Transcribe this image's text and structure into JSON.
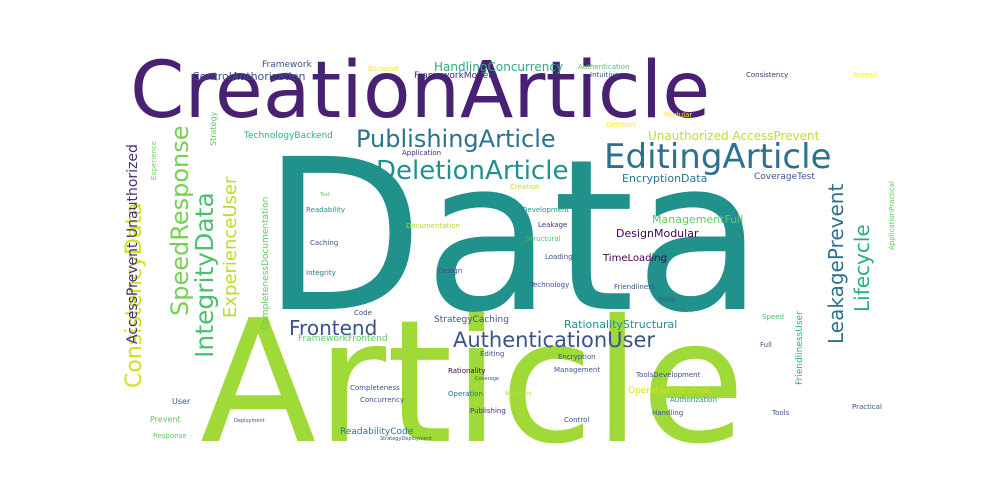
{
  "colors": {
    "background": "#ffffff",
    "palette": [
      "#440154",
      "#472d7b",
      "#3b528b",
      "#2c728e",
      "#21918c",
      "#28ae80",
      "#5ec962",
      "#addc30",
      "#fde725"
    ]
  },
  "words": [
    {
      "text": "Data",
      "color": "#21918c"
    },
    {
      "text": "Article",
      "color": "#a0da39"
    },
    {
      "text": "CreationArticle",
      "color": "#482173"
    },
    {
      "text": "EditingArticle",
      "color": "#2c728e"
    },
    {
      "text": "PublishingArticle",
      "color": "#2c728e"
    },
    {
      "text": "DeletionArticle",
      "color": "#21918c"
    },
    {
      "text": "AuthenticationUser",
      "color": "#3b528b"
    },
    {
      "text": "Frontend",
      "color": "#3b528b"
    },
    {
      "text": "SpeedResponse",
      "color": "#75d054"
    },
    {
      "text": "ConsistencyData",
      "color": "#d2e21b"
    },
    {
      "text": "IntegrityData",
      "color": "#4ac16d"
    },
    {
      "text": "ExperienceUser",
      "color": "#b8de29"
    },
    {
      "text": "AccessPrevent Unauthorized",
      "color": "#472d7b"
    },
    {
      "text": "LeakagePrevent",
      "color": "#2c728e"
    },
    {
      "text": "Lifecycle",
      "color": "#28ae80"
    },
    {
      "text": "HandlingConcurrency",
      "color": "#28ae80"
    },
    {
      "text": "ControlAuthorization",
      "color": "#3b528b"
    },
    {
      "text": "Framework",
      "color": "#3b528b"
    },
    {
      "text": "FrameworkModern",
      "color": "#472d7b"
    },
    {
      "text": "Unauthorized AccessPrevent",
      "color": "#bddf26"
    },
    {
      "text": "EncryptionData",
      "color": "#2c728e"
    },
    {
      "text": "CoverageTest",
      "color": "#3b528b"
    },
    {
      "text": "ManagementFull",
      "color": "#5ec962"
    },
    {
      "text": "DesignModular",
      "color": "#440154"
    },
    {
      "text": "TimeLoading",
      "color": "#440154"
    },
    {
      "text": "RationalityStructural",
      "color": "#21918c"
    },
    {
      "text": "StrategyCaching",
      "color": "#3b528b"
    },
    {
      "text": "FrameworkFrontend",
      "color": "#5ec962"
    },
    {
      "text": "TechnologyBackend",
      "color": "#28ae80"
    },
    {
      "text": "CompletenessDocumentation",
      "color": "#5ec962"
    },
    {
      "text": "ReadabilityCode",
      "color": "#2c728e"
    },
    {
      "text": "OperationIntuitive",
      "color": "#d2e21b"
    },
    {
      "text": "ToolsDevelopment",
      "color": "#3b528b"
    },
    {
      "text": "FriendlinessUser",
      "color": "#28ae80"
    },
    {
      "text": "ApplicationPractical",
      "color": "#5ec962"
    },
    {
      "text": "Authentication",
      "color": "#4ac16d"
    },
    {
      "text": "Intuitive",
      "color": "#3b528b"
    },
    {
      "text": "Consistency",
      "color": "#472d7b"
    },
    {
      "text": "Access",
      "color": "#fde725"
    },
    {
      "text": "Backend",
      "color": "#fde725"
    },
    {
      "text": "Modular",
      "color": "#fde725"
    },
    {
      "text": "Deletion",
      "color": "#fde725"
    },
    {
      "text": "Strategy",
      "color": "#5ec962"
    },
    {
      "text": "Experience",
      "color": "#75d054"
    },
    {
      "text": "Application",
      "color": "#472d7b"
    },
    {
      "text": "Creation",
      "color": "#b8de29"
    },
    {
      "text": "Development",
      "color": "#21918c"
    },
    {
      "text": "Readability",
      "color": "#21918c"
    },
    {
      "text": "Documentation",
      "color": "#addc30"
    },
    {
      "text": "Leakage",
      "color": "#472d7b"
    },
    {
      "text": "Structural",
      "color": "#4ac16d"
    },
    {
      "text": "Caching",
      "color": "#3b528b"
    },
    {
      "text": "Loading",
      "color": "#3b528b"
    },
    {
      "text": "Integrity",
      "color": "#2c728e"
    },
    {
      "text": "Design",
      "color": "#3b528b"
    },
    {
      "text": "Friendliness",
      "color": "#3b528b"
    },
    {
      "text": "Technology",
      "color": "#3b528b"
    },
    {
      "text": "Time",
      "color": "#3b528b"
    },
    {
      "text": "Code",
      "color": "#3b528b"
    },
    {
      "text": "Speed",
      "color": "#4ac16d"
    },
    {
      "text": "Full",
      "color": "#3b528b"
    },
    {
      "text": "Editing",
      "color": "#3b528b"
    },
    {
      "text": "Encryption",
      "color": "#3b528b"
    },
    {
      "text": "Rationality",
      "color": "#440154"
    },
    {
      "text": "Management",
      "color": "#3b528b"
    },
    {
      "text": "Coverage",
      "color": "#3b528b"
    },
    {
      "text": "Completeness",
      "color": "#3b528b"
    },
    {
      "text": "Operation",
      "color": "#2c728e"
    },
    {
      "text": "Modern",
      "color": "#bddf26"
    },
    {
      "text": "Authorization",
      "color": "#21918c"
    },
    {
      "text": "Concurrency",
      "color": "#3b528b"
    },
    {
      "text": "User",
      "color": "#3b528b"
    },
    {
      "text": "Prevent",
      "color": "#5ec962"
    },
    {
      "text": "Publishing",
      "color": "#472d7b"
    },
    {
      "text": "Handling",
      "color": "#3b528b"
    },
    {
      "text": "Tools",
      "color": "#3b528b"
    },
    {
      "text": "Practical",
      "color": "#3b528b"
    },
    {
      "text": "Control",
      "color": "#3b528b"
    },
    {
      "text": "Response",
      "color": "#5ec962"
    },
    {
      "text": "Deployment",
      "color": "#3b528b"
    },
    {
      "text": "StrategyDeployment",
      "color": "#3b528b"
    },
    {
      "text": "Test",
      "color": "#5ec962"
    }
  ]
}
